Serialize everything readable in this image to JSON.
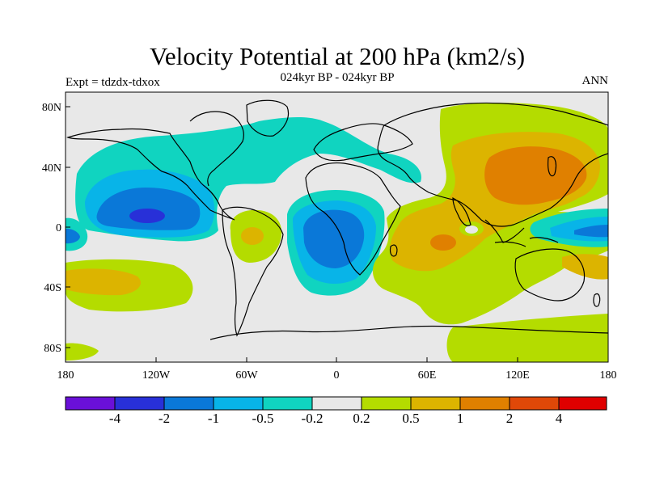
{
  "title": "Velocity Potential at 200 hPa (km2/s)",
  "subtitle": "024kyr BP - 024kyr BP",
  "left_label": "Expt = tdzdx-tdxox",
  "right_label": "ANN",
  "lat_labels": [
    "80N",
    "40N",
    "0",
    "40S",
    "80S"
  ],
  "lon_labels": [
    "180",
    "120W",
    "60W",
    "0",
    "60E",
    "120E",
    "180"
  ],
  "colorbar": {
    "colors": [
      "#6a10d8",
      "#2830d8",
      "#0a78d8",
      "#08b4e8",
      "#10d4c0",
      "#e8e8e8",
      "#b4dc00",
      "#dcb400",
      "#e08000",
      "#e04808",
      "#e00000"
    ],
    "labels": [
      "-4",
      "-2",
      "-1",
      "-0.5",
      "-0.2",
      "0.2",
      "0.5",
      "1",
      "2",
      "4"
    ]
  }
}
